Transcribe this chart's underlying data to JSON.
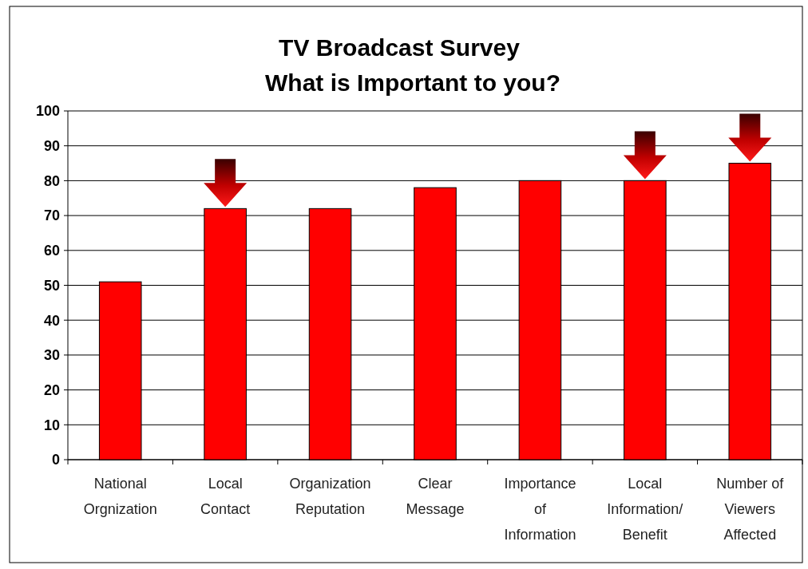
{
  "chart_data": {
    "type": "bar",
    "title": "TV Broadcast Survey",
    "subtitle": "What is Important to you?",
    "categories": [
      "National Orgnization",
      "Local Contact",
      "Organization Reputation",
      "Clear Message",
      "Importance of Information",
      "Local Information/ Benefit",
      "Number of Viewers Affected"
    ],
    "values": [
      51,
      72,
      72,
      78,
      80,
      80,
      85
    ],
    "color": "#ff0000",
    "ylim": [
      0,
      100
    ],
    "yticks": [
      0,
      10,
      20,
      30,
      40,
      50,
      60,
      70,
      80,
      90,
      100
    ],
    "grid": "y"
  }
}
